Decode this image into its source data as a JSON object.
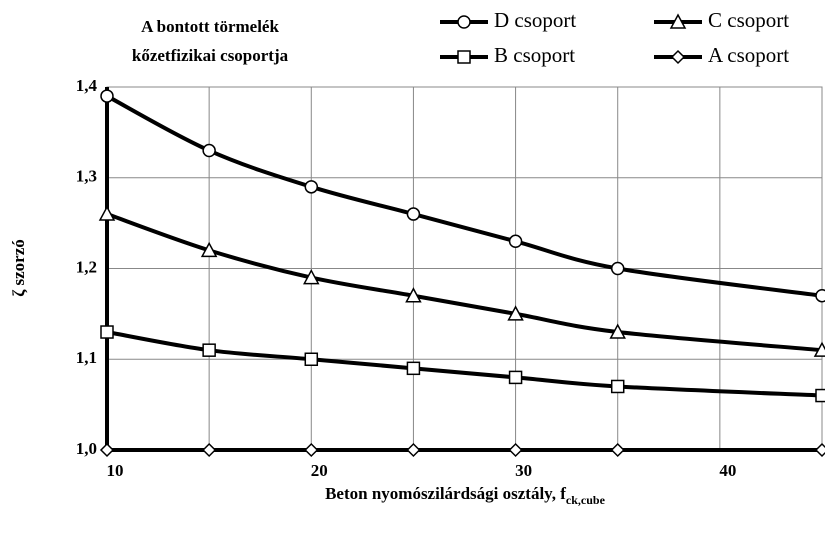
{
  "chart_data": {
    "type": "line",
    "title": [
      "A bontott törmelék",
      "kőzetfizikai csoportja"
    ],
    "x_label": "Beton nyomószilárdsági osztály, f",
    "x_label_sub": "ck,cube",
    "y_label": "ζ szorzó",
    "x": [
      10,
      15,
      20,
      25,
      30,
      35,
      45
    ],
    "series": [
      {
        "name": "D csoport",
        "marker": "circle",
        "color": "#000000",
        "values": [
          1.39,
          1.33,
          1.29,
          1.26,
          1.23,
          1.2,
          1.17
        ]
      },
      {
        "name": "C csoport",
        "marker": "triangle",
        "color": "#000000",
        "values": [
          1.26,
          1.22,
          1.19,
          1.17,
          1.15,
          1.13,
          1.11
        ]
      },
      {
        "name": "B csoport",
        "marker": "square",
        "color": "#000000",
        "values": [
          1.13,
          1.11,
          1.1,
          1.09,
          1.08,
          1.07,
          1.06
        ]
      },
      {
        "name": "A csoport",
        "marker": "diamond",
        "color": "#000000",
        "values": [
          1.0,
          1.0,
          1.0,
          1.0,
          1.0,
          1.0,
          1.0
        ]
      }
    ],
    "xlim": [
      10,
      45
    ],
    "xticks": [
      10,
      20,
      30,
      40
    ],
    "x_minor_ticks": [
      15,
      25,
      35
    ],
    "ylim": [
      1.0,
      1.4
    ],
    "yticks": [
      {
        "value": 1.0,
        "label": "1,0"
      },
      {
        "value": 1.1,
        "label": "1,1"
      },
      {
        "value": 1.2,
        "label": "1,2"
      },
      {
        "value": 1.3,
        "label": "1,3"
      },
      {
        "value": 1.4,
        "label": "1,4"
      }
    ],
    "grid": true,
    "legend": "top-right"
  }
}
